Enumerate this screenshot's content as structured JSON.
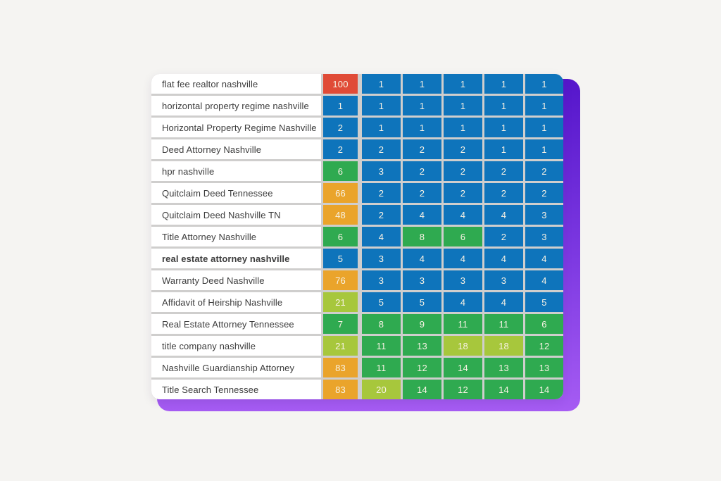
{
  "colors": {
    "page_background": "#f5f4f2",
    "card_background": "#ffffff",
    "grid_line": "#cfcecd",
    "keyword_text": "#3c3c3c",
    "cell_text": "#f8f2e4",
    "rank_palette": {
      "red": "#e04b37",
      "orange": "#eaa42b",
      "lime": "#a7c73c",
      "green": "#2faa50",
      "blue": "#0e74bb"
    },
    "backdrop_gradient_top": "#5516cb",
    "backdrop_gradient_mid": "#7e3ae2",
    "backdrop_gradient_bottom": "#a65cf3"
  },
  "chart_data": {
    "type": "heatmap",
    "description_visible": false,
    "num_columns": 6,
    "bold_row_index": 8,
    "row_labels": [
      "flat fee realtor nashville",
      "horizontal property regime nashville",
      "Horizontal Property Regime Nashville",
      "Deed Attorney Nashville",
      "hpr nashville",
      "Quitclaim Deed Tennessee",
      "Quitclaim Deed Nashville TN",
      "Title Attorney Nashville",
      "real estate attorney nashville",
      "Warranty Deed Nashville",
      "Affidavit of Heirship Nashville",
      "Real Estate Attorney Tennessee",
      "title company nashville",
      "Nashville Guardianship Attorney",
      "Title Search Tennessee"
    ],
    "values": [
      [
        100,
        1,
        1,
        1,
        1,
        1
      ],
      [
        1,
        1,
        1,
        1,
        1,
        1
      ],
      [
        2,
        1,
        1,
        1,
        1,
        1
      ],
      [
        2,
        2,
        2,
        2,
        1,
        1
      ],
      [
        6,
        3,
        2,
        2,
        2,
        2
      ],
      [
        66,
        2,
        2,
        2,
        2,
        2
      ],
      [
        48,
        2,
        4,
        4,
        4,
        3
      ],
      [
        6,
        4,
        8,
        6,
        2,
        3
      ],
      [
        5,
        3,
        4,
        4,
        4,
        4
      ],
      [
        76,
        3,
        3,
        3,
        3,
        4
      ],
      [
        21,
        5,
        5,
        4,
        4,
        5
      ],
      [
        7,
        8,
        9,
        11,
        11,
        6
      ],
      [
        21,
        11,
        13,
        18,
        18,
        12
      ],
      [
        83,
        11,
        12,
        14,
        13,
        13
      ],
      [
        83,
        20,
        14,
        12,
        14,
        14
      ]
    ],
    "cell_colors": [
      [
        "red",
        "blue",
        "blue",
        "blue",
        "blue",
        "blue"
      ],
      [
        "blue",
        "blue",
        "blue",
        "blue",
        "blue",
        "blue"
      ],
      [
        "blue",
        "blue",
        "blue",
        "blue",
        "blue",
        "blue"
      ],
      [
        "blue",
        "blue",
        "blue",
        "blue",
        "blue",
        "blue"
      ],
      [
        "green",
        "blue",
        "blue",
        "blue",
        "blue",
        "blue"
      ],
      [
        "orange",
        "blue",
        "blue",
        "blue",
        "blue",
        "blue"
      ],
      [
        "orange",
        "blue",
        "blue",
        "blue",
        "blue",
        "blue"
      ],
      [
        "green",
        "blue",
        "green",
        "green",
        "blue",
        "blue"
      ],
      [
        "blue",
        "blue",
        "blue",
        "blue",
        "blue",
        "blue"
      ],
      [
        "orange",
        "blue",
        "blue",
        "blue",
        "blue",
        "blue"
      ],
      [
        "lime",
        "blue",
        "blue",
        "blue",
        "blue",
        "blue"
      ],
      [
        "green",
        "green",
        "green",
        "green",
        "green",
        "green"
      ],
      [
        "lime",
        "green",
        "green",
        "lime",
        "lime",
        "green"
      ],
      [
        "orange",
        "green",
        "green",
        "green",
        "green",
        "green"
      ],
      [
        "orange",
        "lime",
        "green",
        "green",
        "green",
        "green"
      ]
    ]
  }
}
